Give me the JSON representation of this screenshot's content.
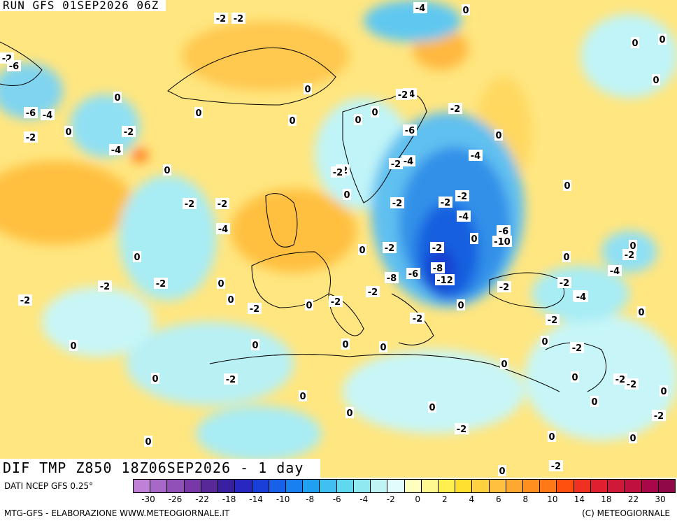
{
  "header": {
    "run_title": "RUN GFS 01SEP2026 06Z",
    "field_title": "DIF TMP Z850 18Z06SEP2026 - 1 day"
  },
  "footer": {
    "data_source": "DATI NCEP GFS 0.25°",
    "credit": "MTG-GFS - ELABORAZIONE WWW.METEOGIORNALE.IT",
    "copyright": "(C) METEOGIORNALE"
  },
  "colorbar": {
    "swatches": [
      "#c080d8",
      "#a868c8",
      "#9050b8",
      "#7838a8",
      "#582898",
      "#3820a0",
      "#2828c0",
      "#1840d8",
      "#1860e8",
      "#1880f0",
      "#20a0f0",
      "#40c0f0",
      "#60d8f0",
      "#90e8f0",
      "#c0f4f4",
      "#e0fcfc",
      "#ffffc0",
      "#fff890",
      "#fff050",
      "#ffe030",
      "#ffd040",
      "#ffc040",
      "#ffa830",
      "#ff9020",
      "#ff7818",
      "#ff5010",
      "#f03020",
      "#e02030",
      "#d01838",
      "#c01040",
      "#a80848",
      "#900848"
    ],
    "tick_labels": [
      "-30",
      "-26",
      "-22",
      "-18",
      "-14",
      "-10",
      "-8",
      "-6",
      "-4",
      "-2",
      "0",
      "2",
      "4",
      "6",
      "8",
      "10",
      "14",
      "18",
      "22",
      "30"
    ]
  },
  "map_labels": [
    "-2",
    "-6",
    "-2",
    "-4",
    "-2",
    "0",
    "-6",
    "-4",
    "-2",
    "0",
    "0",
    "-2",
    "-4",
    "-2",
    "0",
    "0",
    "0",
    "0",
    "-2",
    "-4",
    "-2",
    "0",
    "0",
    "-2",
    "-6",
    "-2",
    "-4",
    "-2",
    "0",
    "-2",
    "0",
    "-2",
    "-2",
    "0",
    "-4",
    "-2",
    "-4",
    "-6",
    "-10",
    "-4",
    "-2",
    "0",
    "-2",
    "-2",
    "-6",
    "-8",
    "-12",
    "-8",
    "-4",
    "0",
    "-2",
    "0",
    "-2",
    "-2",
    "0",
    "-4",
    "0",
    "0",
    "-2",
    "0",
    "0",
    "-2",
    "-2",
    "0",
    "-2",
    "-4",
    "0",
    "-2",
    "0",
    "0",
    "0",
    "0",
    "0",
    "0",
    "-2",
    "0",
    "0",
    "0",
    "-2",
    "0",
    "0",
    "-2",
    "-2",
    "0",
    "0",
    "-2",
    "-2",
    "0",
    "-2",
    "0",
    "0",
    "0",
    "-2",
    "0",
    "0",
    "0",
    "0",
    "-2"
  ]
}
